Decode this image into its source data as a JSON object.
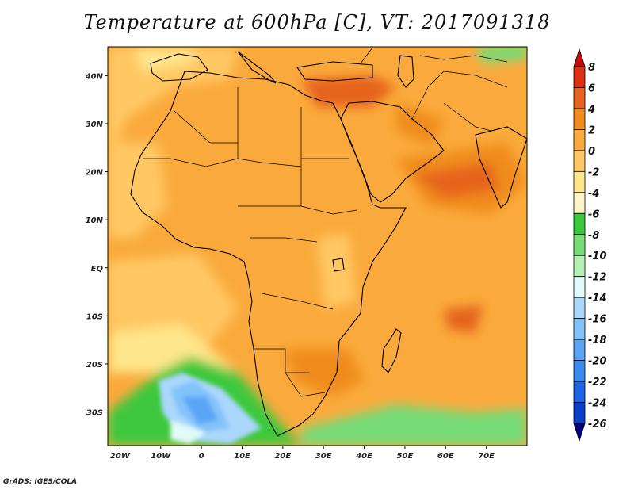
{
  "title": "Temperature at 600hPa [C], VT: 2017091318",
  "credit": "GrADS: IGES/COLA",
  "map": {
    "projection": "latlon",
    "lon_range": [
      -23,
      80
    ],
    "lat_range": [
      -37,
      46
    ],
    "lat_ticks": [
      {
        "value": 40,
        "label": "40N"
      },
      {
        "value": 30,
        "label": "30N"
      },
      {
        "value": 20,
        "label": "20N"
      },
      {
        "value": 10,
        "label": "10N"
      },
      {
        "value": 0,
        "label": "EQ"
      },
      {
        "value": -10,
        "label": "10S"
      },
      {
        "value": -20,
        "label": "20S"
      },
      {
        "value": -30,
        "label": "30S"
      }
    ],
    "lon_ticks": [
      {
        "value": -20,
        "label": "20W"
      },
      {
        "value": -10,
        "label": "10W"
      },
      {
        "value": 0,
        "label": "0"
      },
      {
        "value": 10,
        "label": "10E"
      },
      {
        "value": 20,
        "label": "20E"
      },
      {
        "value": 30,
        "label": "30E"
      },
      {
        "value": 40,
        "label": "40E"
      },
      {
        "value": 50,
        "label": "50E"
      },
      {
        "value": 60,
        "label": "60E"
      },
      {
        "value": 70,
        "label": "70E"
      }
    ]
  },
  "colorbar": {
    "colors": [
      "#000080",
      "#0a3fc8",
      "#1e64e6",
      "#3c8cf0",
      "#5aa5f5",
      "#82c3fa",
      "#aad7fc",
      "#e1fafa",
      "#b4f0b4",
      "#78dc78",
      "#3cc83c",
      "#fff5c8",
      "#ffe68c",
      "#ffc864",
      "#faaa3c",
      "#f08c1e",
      "#e6641e",
      "#dc3214",
      "#c80a0a"
    ],
    "labels": [
      "8",
      "6",
      "4",
      "2",
      "0",
      "-2",
      "-4",
      "-6",
      "-8",
      "-10",
      "-12",
      "-14",
      "-16",
      "-18",
      "-20",
      "-22",
      "-24",
      "-26"
    ]
  }
}
